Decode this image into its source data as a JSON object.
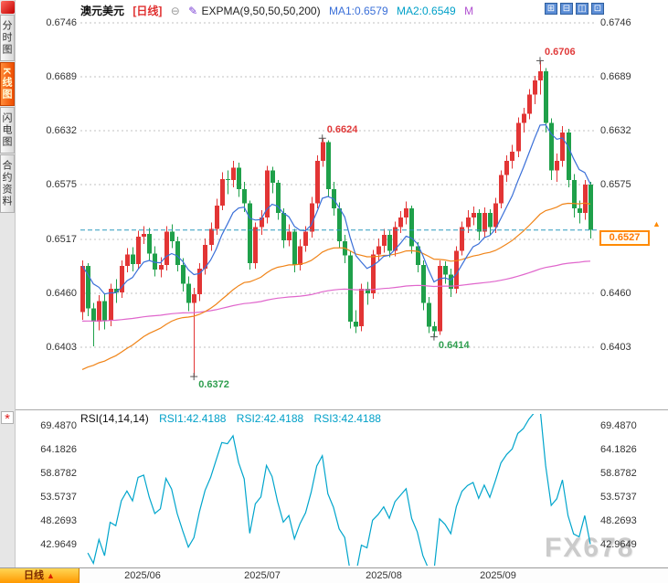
{
  "watermark": "FX678",
  "header": {
    "symbol": "澳元美元",
    "period": "[日线]",
    "collapse_icon": "⊖",
    "edit_icon": "✎",
    "indicator_label": "EXPMA(9,50,50,50,200)",
    "ma1": "MA1:0.6579",
    "ma2": "MA2:0.6549",
    "ma3": "M"
  },
  "toolbar": {
    "icons": [
      {
        "name": "layout-grid-icon",
        "glyph": "⊞"
      },
      {
        "name": "layout-split-horizontal-icon",
        "glyph": "⊟"
      },
      {
        "name": "layout-split-vertical-icon",
        "glyph": "◫"
      },
      {
        "name": "layout-single-pane-icon",
        "glyph": "⊡"
      }
    ]
  },
  "sidebar": {
    "indicator_icon": "*",
    "tabs": [
      {
        "label": "分时图",
        "active": false
      },
      {
        "label": "K线图",
        "active": true
      },
      {
        "label": "闪电图",
        "active": false
      },
      {
        "label": "合约资料",
        "active": false
      }
    ]
  },
  "main_chart": {
    "y_axis_left": [
      "0.6746",
      "0.6689",
      "0.6632",
      "0.6575",
      "0.6517",
      "0.6460",
      "0.6403"
    ],
    "y_axis_right": [
      "0.6746",
      "0.6689",
      "0.6632",
      "0.6575",
      "0.6460",
      "0.6403"
    ],
    "price_badge": {
      "value": "0.6527",
      "arrow": "▲"
    },
    "current_price": 0.6527,
    "annotations": [
      {
        "text": "0.6706",
        "value": 0.6706,
        "candle": 82,
        "pos": "above",
        "direction": "up"
      },
      {
        "text": "0.6624",
        "value": 0.6624,
        "candle": 43,
        "pos": "above",
        "direction": "up"
      },
      {
        "text": "0.6414",
        "value": 0.6414,
        "candle": 63,
        "pos": "below",
        "direction": "down"
      },
      {
        "text": "0.6372",
        "value": 0.6372,
        "candle": 20,
        "pos": "below",
        "direction": "down"
      }
    ]
  },
  "rsi_panel": {
    "title": "RSI(14,14,14)",
    "rsi1": "RSI1:42.4188",
    "rsi2": "RSI2:42.4188",
    "rsi3": "RSI3:42.4188",
    "y_axis": [
      "69.4870",
      "64.1826",
      "58.8782",
      "53.5737",
      "48.2693",
      "42.9649"
    ]
  },
  "footer": {
    "period_tab": "日线",
    "arrow": "▲",
    "x_labels": [
      "2025/06",
      "2025/07",
      "2025/08",
      "2025/09"
    ]
  },
  "colors": {
    "up": "#e23535",
    "down": "#1fa04a",
    "ema_fast": "#3a6fd8",
    "ema_mid": "#f08418",
    "ema_slow": "#e066cc",
    "rsi_line": "#00a5cc",
    "price_line": "#2e9bbf",
    "badge": "#ff8a00",
    "grid": "#c0c0c0",
    "annotation_up": "#e03a3a",
    "annotation_down": "#2f9e4f"
  },
  "chart_data": {
    "type": "candlestick",
    "title": "澳元美元 日线 (AUD/USD Daily) with EXPMA(9,50,50,50,200) and RSI(14,14,14)",
    "x_labels": [
      "2025/06",
      "2025/07",
      "2025/08",
      "2025/09"
    ],
    "y_ticks_main": [
      0.6746,
      0.6689,
      0.6632,
      0.6575,
      0.6517,
      0.646,
      0.6403
    ],
    "y_ticks_rsi": [
      69.487,
      64.1826,
      58.8782,
      53.5737,
      48.2693,
      42.9649
    ],
    "indicator_settings": {
      "expma_periods": [
        9,
        50,
        50,
        50,
        200
      ],
      "ma1": 0.6579,
      "ma2": 0.6549,
      "rsi_periods": [
        14,
        14,
        14
      ],
      "rsi1": 42.4188,
      "rsi2": 42.4188,
      "rsi3": 42.4188
    },
    "key_levels": {
      "high": 0.6706,
      "swing_high": 0.6624,
      "swing_low": 0.6414,
      "low": 0.6372,
      "last_price": 0.6527
    },
    "ema_seeds": {
      "fast": null,
      "mid": 0.6375,
      "slow": 0.643
    },
    "candles_ohlc": [
      [
        0.644,
        0.6495,
        0.6432,
        0.6489
      ],
      [
        0.6489,
        0.6492,
        0.6436,
        0.6444
      ],
      [
        0.6444,
        0.645,
        0.6404,
        0.643
      ],
      [
        0.643,
        0.6458,
        0.6421,
        0.6452
      ],
      [
        0.6452,
        0.646,
        0.6422,
        0.6431
      ],
      [
        0.6431,
        0.647,
        0.6425,
        0.6465
      ],
      [
        0.6465,
        0.6475,
        0.645,
        0.6461
      ],
      [
        0.6461,
        0.6495,
        0.6455,
        0.6489
      ],
      [
        0.6489,
        0.6508,
        0.6482,
        0.6501
      ],
      [
        0.6501,
        0.6509,
        0.6483,
        0.6491
      ],
      [
        0.6491,
        0.6526,
        0.6486,
        0.652
      ],
      [
        0.652,
        0.6531,
        0.6512,
        0.6523
      ],
      [
        0.6523,
        0.6529,
        0.6495,
        0.6502
      ],
      [
        0.6502,
        0.651,
        0.6478,
        0.6485
      ],
      [
        0.6485,
        0.6498,
        0.6477,
        0.649
      ],
      [
        0.649,
        0.6531,
        0.6484,
        0.6525
      ],
      [
        0.6525,
        0.6533,
        0.6508,
        0.6515
      ],
      [
        0.6515,
        0.652,
        0.6483,
        0.649
      ],
      [
        0.649,
        0.6497,
        0.6462,
        0.647
      ],
      [
        0.647,
        0.6478,
        0.6441,
        0.645
      ],
      [
        0.645,
        0.6466,
        0.6372,
        0.6459
      ],
      [
        0.6459,
        0.6492,
        0.6452,
        0.6486
      ],
      [
        0.6486,
        0.6518,
        0.648,
        0.6511
      ],
      [
        0.6511,
        0.6535,
        0.6505,
        0.6528
      ],
      [
        0.6528,
        0.656,
        0.6522,
        0.6553
      ],
      [
        0.6553,
        0.6588,
        0.6548,
        0.6581
      ],
      [
        0.6581,
        0.659,
        0.6565,
        0.658
      ],
      [
        0.658,
        0.66,
        0.6572,
        0.6593
      ],
      [
        0.6593,
        0.6598,
        0.6562,
        0.657
      ],
      [
        0.657,
        0.6578,
        0.6546,
        0.6555
      ],
      [
        0.6555,
        0.6558,
        0.6485,
        0.6492
      ],
      [
        0.6492,
        0.6535,
        0.6486,
        0.653
      ],
      [
        0.653,
        0.6548,
        0.6522,
        0.654
      ],
      [
        0.654,
        0.6595,
        0.6534,
        0.659
      ],
      [
        0.659,
        0.6594,
        0.6566,
        0.6577
      ],
      [
        0.6577,
        0.658,
        0.6538,
        0.6545
      ],
      [
        0.6545,
        0.655,
        0.6508,
        0.6516
      ],
      [
        0.6516,
        0.6533,
        0.651,
        0.6525
      ],
      [
        0.6525,
        0.6528,
        0.6482,
        0.649
      ],
      [
        0.649,
        0.6517,
        0.6484,
        0.651
      ],
      [
        0.651,
        0.6531,
        0.6504,
        0.6525
      ],
      [
        0.6525,
        0.6562,
        0.6519,
        0.6555
      ],
      [
        0.6555,
        0.6606,
        0.655,
        0.66
      ],
      [
        0.66,
        0.6624,
        0.6594,
        0.662
      ],
      [
        0.662,
        0.6622,
        0.6562,
        0.657
      ],
      [
        0.657,
        0.6578,
        0.6542,
        0.655
      ],
      [
        0.655,
        0.6556,
        0.6508,
        0.6515
      ],
      [
        0.6515,
        0.6522,
        0.6492,
        0.65
      ],
      [
        0.65,
        0.6505,
        0.6423,
        0.643
      ],
      [
        0.643,
        0.6442,
        0.6418,
        0.6425
      ],
      [
        0.6425,
        0.647,
        0.642,
        0.6465
      ],
      [
        0.6465,
        0.6472,
        0.6448,
        0.646
      ],
      [
        0.646,
        0.6506,
        0.6454,
        0.6501
      ],
      [
        0.6501,
        0.6518,
        0.6494,
        0.651
      ],
      [
        0.651,
        0.6528,
        0.6503,
        0.6522
      ],
      [
        0.6522,
        0.6526,
        0.6498,
        0.6505
      ],
      [
        0.6505,
        0.6536,
        0.6499,
        0.653
      ],
      [
        0.653,
        0.6547,
        0.6524,
        0.654
      ],
      [
        0.654,
        0.6557,
        0.6533,
        0.655
      ],
      [
        0.655,
        0.6553,
        0.6502,
        0.651
      ],
      [
        0.651,
        0.6514,
        0.6482,
        0.649
      ],
      [
        0.649,
        0.6495,
        0.6442,
        0.645
      ],
      [
        0.645,
        0.6456,
        0.6418,
        0.6425
      ],
      [
        0.6425,
        0.643,
        0.6414,
        0.642
      ],
      [
        0.642,
        0.6495,
        0.6416,
        0.6489
      ],
      [
        0.6489,
        0.6494,
        0.647,
        0.648
      ],
      [
        0.648,
        0.6486,
        0.6456,
        0.6465
      ],
      [
        0.6465,
        0.651,
        0.646,
        0.6505
      ],
      [
        0.6505,
        0.6536,
        0.65,
        0.653
      ],
      [
        0.653,
        0.6548,
        0.6524,
        0.654
      ],
      [
        0.654,
        0.6552,
        0.6532,
        0.6545
      ],
      [
        0.6545,
        0.6549,
        0.6516,
        0.6525
      ],
      [
        0.6525,
        0.6551,
        0.6519,
        0.6545
      ],
      [
        0.6545,
        0.6549,
        0.6522,
        0.653
      ],
      [
        0.653,
        0.6561,
        0.6524,
        0.6555
      ],
      [
        0.6555,
        0.659,
        0.655,
        0.6585
      ],
      [
        0.6585,
        0.6606,
        0.6578,
        0.66
      ],
      [
        0.66,
        0.6617,
        0.6592,
        0.661
      ],
      [
        0.661,
        0.6646,
        0.6604,
        0.664
      ],
      [
        0.664,
        0.6656,
        0.663,
        0.665
      ],
      [
        0.665,
        0.6676,
        0.6644,
        0.667
      ],
      [
        0.667,
        0.669,
        0.666,
        0.6685
      ],
      [
        0.6685,
        0.6706,
        0.667,
        0.6695
      ],
      [
        0.6695,
        0.6698,
        0.663,
        0.664
      ],
      [
        0.664,
        0.6645,
        0.658,
        0.659
      ],
      [
        0.659,
        0.6608,
        0.6578,
        0.66
      ],
      [
        0.66,
        0.6637,
        0.6594,
        0.663
      ],
      [
        0.663,
        0.6634,
        0.6572,
        0.658
      ],
      [
        0.658,
        0.6586,
        0.654,
        0.655
      ],
      [
        0.655,
        0.6558,
        0.6534,
        0.6545
      ],
      [
        0.6545,
        0.658,
        0.6538,
        0.6575
      ],
      [
        0.6575,
        0.6578,
        0.6518,
        0.6527
      ]
    ]
  }
}
